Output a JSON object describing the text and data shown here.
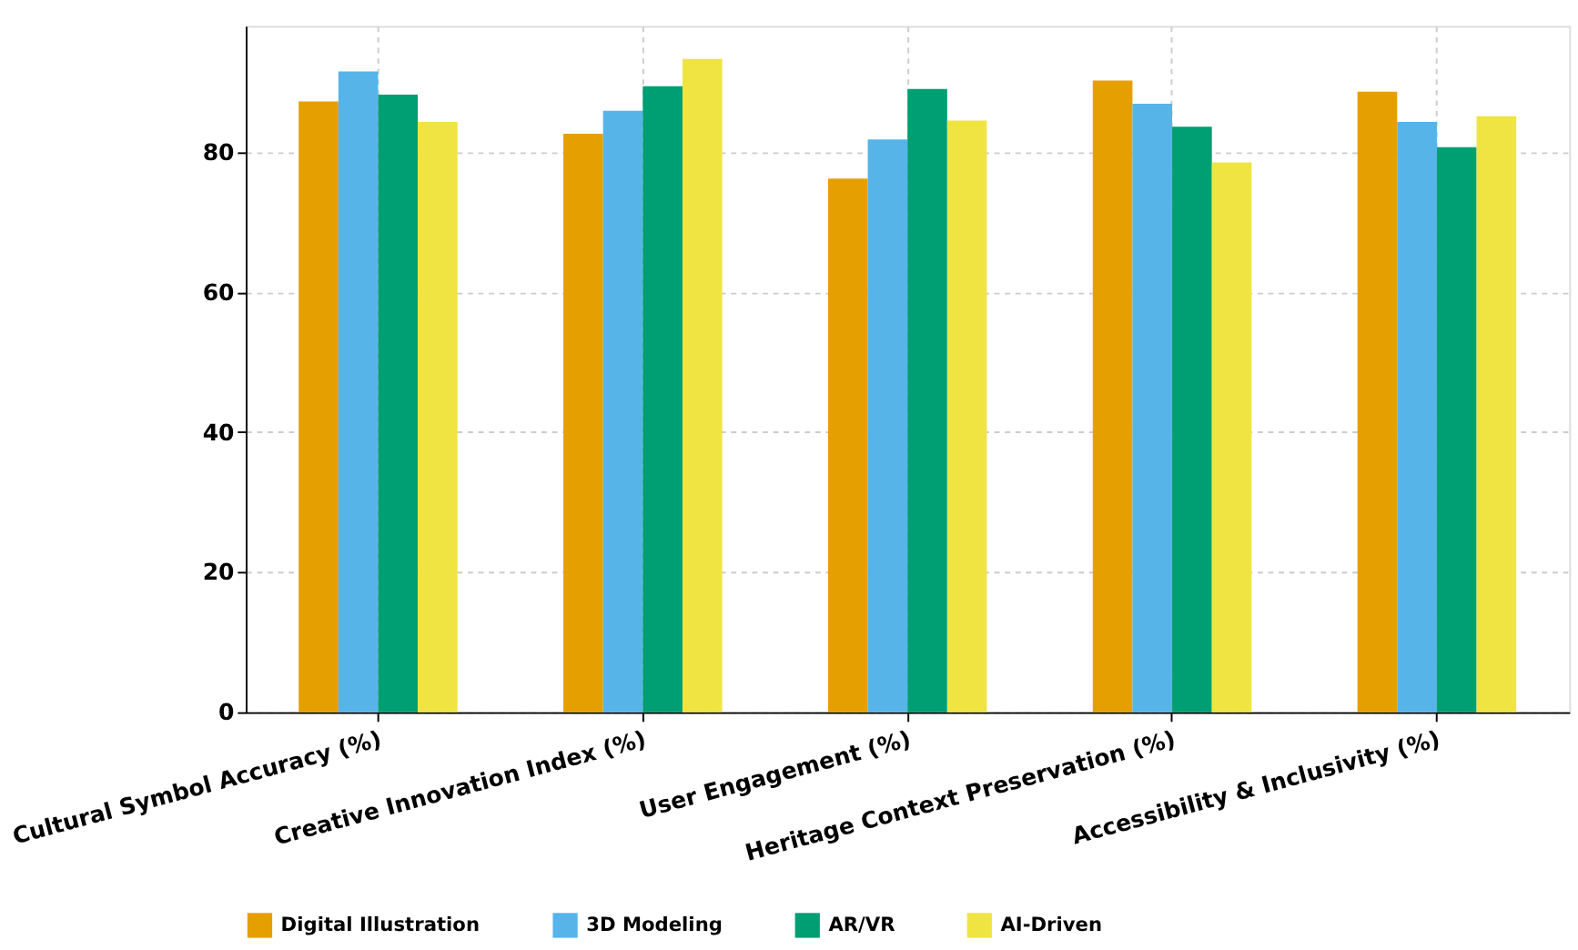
{
  "chart_data": {
    "type": "bar",
    "categories": [
      "Cultural Symbol Accuracy (%)",
      "Creative Innovation Index (%)",
      "User Engagement (%)",
      "Heritage Context Preservation (%)",
      "Accessibility & Inclusivity (%)"
    ],
    "series": [
      {
        "name": "Digital Illustration",
        "color": "#e69f00",
        "values": [
          87.2,
          82.6,
          76.2,
          90.2,
          88.6
        ]
      },
      {
        "name": "3D Modeling",
        "color": "#56b4e9",
        "values": [
          91.5,
          85.9,
          81.8,
          86.9,
          84.3
        ]
      },
      {
        "name": "AR/VR",
        "color": "#009e73",
        "values": [
          88.2,
          89.4,
          89.0,
          83.6,
          80.7
        ]
      },
      {
        "name": "AI-Driven",
        "color": "#f0e442",
        "values": [
          84.3,
          93.3,
          84.5,
          78.5,
          85.1
        ]
      }
    ],
    "ylim": [
      0,
      98
    ],
    "yticks": [
      0,
      20,
      40,
      60,
      80
    ],
    "grid": true,
    "legend": "bottom"
  }
}
